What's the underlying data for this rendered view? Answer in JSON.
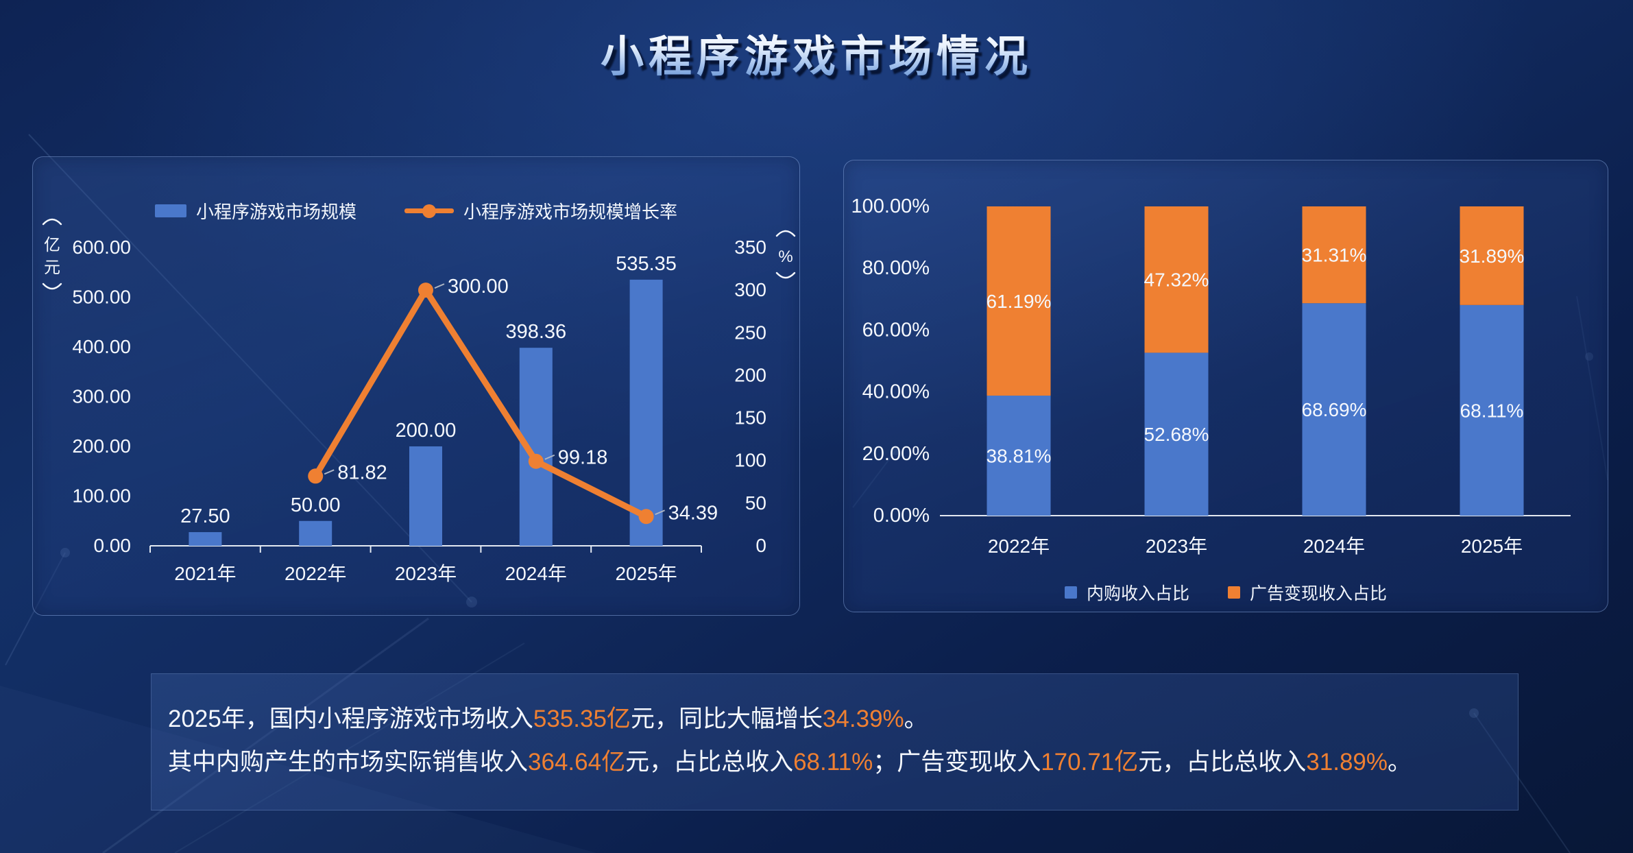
{
  "title": "小程序游戏市场情况",
  "chart_data": [
    {
      "type": "bar+line",
      "name": "小程序游戏市场规模及增长率",
      "categories": [
        "2021年",
        "2022年",
        "2023年",
        "2024年",
        "2025年"
      ],
      "series": [
        {
          "name": "小程序游戏市场规模",
          "type": "bar",
          "axis": "left",
          "unit": "亿元",
          "color": "#4A78CB",
          "values": [
            27.5,
            50.0,
            200.0,
            398.36,
            535.35
          ],
          "labels": [
            "27.50",
            "50.00",
            "200.00",
            "398.36",
            "535.35"
          ]
        },
        {
          "name": "小程序游戏市场规模增长率",
          "type": "line",
          "axis": "right",
          "unit": "%",
          "color": "#EF8032",
          "values": [
            null,
            81.82,
            300.0,
            99.18,
            34.39
          ],
          "labels": [
            null,
            "81.82",
            "300.00",
            "99.18",
            "34.39"
          ]
        }
      ],
      "left_axis": {
        "label": "（亿元）",
        "min": 0,
        "max": 600,
        "ticks": [
          "600.00",
          "500.00",
          "400.00",
          "300.00",
          "200.00",
          "100.00",
          "0.00"
        ]
      },
      "right_axis": {
        "label": "（%）",
        "min": 0,
        "max": 350,
        "ticks": [
          "350",
          "300",
          "250",
          "200",
          "150",
          "100",
          "50",
          "0"
        ]
      },
      "legend_position": "top",
      "grid": false
    },
    {
      "type": "stacked-bar",
      "name": "收入结构占比",
      "categories": [
        "2022年",
        "2023年",
        "2024年",
        "2025年"
      ],
      "series": [
        {
          "name": "内购收入占比",
          "color": "#4A78CB",
          "values": [
            38.81,
            52.68,
            68.69,
            68.11
          ],
          "labels": [
            "38.81%",
            "52.68%",
            "68.69%",
            "68.11%"
          ]
        },
        {
          "name": "广告变现收入占比",
          "color": "#EF8032",
          "values": [
            61.19,
            47.32,
            31.31,
            31.89
          ],
          "labels": [
            "61.19%",
            "47.32%",
            "31.31%",
            "31.89%"
          ]
        }
      ],
      "y_axis": {
        "min": 0,
        "max": 100,
        "ticks": [
          "100.00%",
          "80.00%",
          "60.00%",
          "40.00%",
          "20.00%",
          "0.00%"
        ]
      },
      "legend_position": "bottom",
      "grid": false
    }
  ],
  "summary": {
    "highlight_color": "#EF8032",
    "lines": [
      [
        {
          "text": "2025年，国内小程序游戏市场收入",
          "highlight": false
        },
        {
          "text": "535.35亿",
          "highlight": true
        },
        {
          "text": "元，同比大幅增长",
          "highlight": false
        },
        {
          "text": "34.39%",
          "highlight": true
        },
        {
          "text": "。",
          "highlight": false
        }
      ],
      [
        {
          "text": "其中内购产生的市场实际销售收入",
          "highlight": false
        },
        {
          "text": "364.64亿",
          "highlight": true
        },
        {
          "text": "元，占比总收入",
          "highlight": false
        },
        {
          "text": "68.11%",
          "highlight": true
        },
        {
          "text": "；广告变现收入",
          "highlight": false
        },
        {
          "text": "170.71亿",
          "highlight": true
        },
        {
          "text": "元，占比总收入",
          "highlight": false
        },
        {
          "text": "31.89%",
          "highlight": true
        },
        {
          "text": "。",
          "highlight": false
        }
      ]
    ]
  },
  "colors": {
    "bar_blue": "#4A78CB",
    "accent_orange": "#EF8032",
    "background_navy": "#112A5E"
  }
}
